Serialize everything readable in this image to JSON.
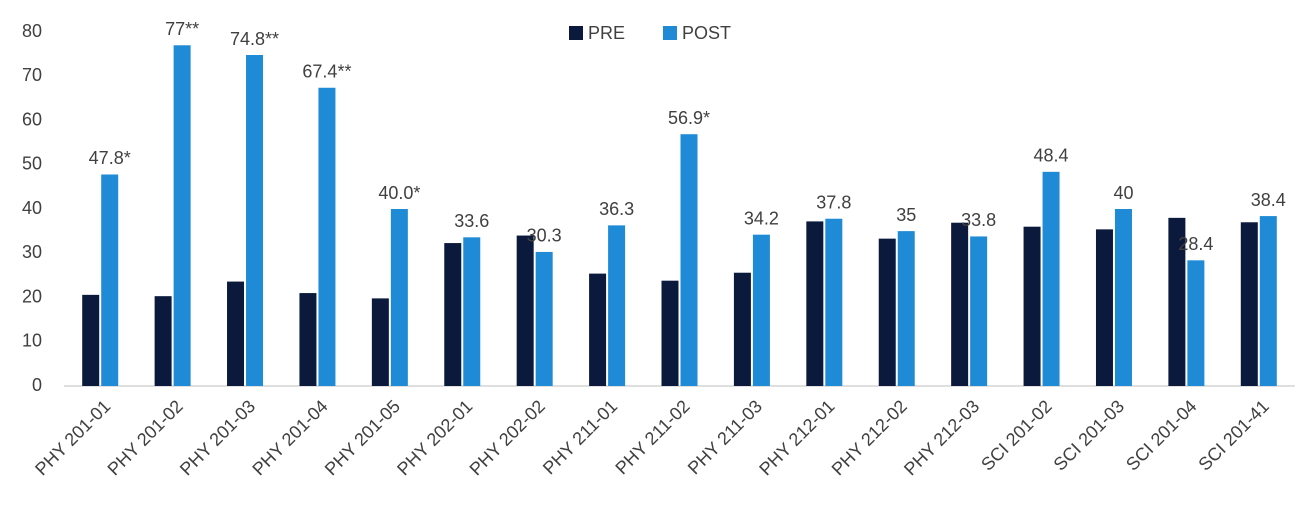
{
  "chart_data": {
    "type": "bar",
    "categories": [
      "PHY 201-01",
      "PHY 201-02",
      "PHY 201-03",
      "PHY 201-04",
      "PHY 201-05",
      "PHY 202-01",
      "PHY 202-02",
      "PHY 211-01",
      "PHY 211-02",
      "PHY 211-03",
      "PHY 212-01",
      "PHY 212-02",
      "PHY 212-03",
      "SCI 201-02",
      "SCI 201-03",
      "SCI 201-04",
      "SCI 201-41"
    ],
    "series": [
      {
        "name": "PRE",
        "color": "#0b1a3c",
        "values": [
          20.6,
          20.3,
          23.6,
          21,
          19.8,
          32.3,
          34,
          25.4,
          23.8,
          25.6,
          37.2,
          33.3,
          36.9,
          36,
          35.4,
          38,
          37
        ]
      },
      {
        "name": "POST",
        "color": "#1f8bd6",
        "values": [
          47.8,
          77,
          74.8,
          67.4,
          40.0,
          33.6,
          30.3,
          36.3,
          56.9,
          34.2,
          37.8,
          35,
          33.8,
          48.4,
          40,
          28.4,
          38.4
        ],
        "value_labels": [
          "47.8*",
          "77**",
          "74.8**",
          "67.4**",
          "40.0*",
          "33.6",
          "30.3",
          "36.3",
          "56.9*",
          "34.2",
          "37.8",
          "35",
          "33.8",
          "48.4",
          "40",
          "28.4",
          "38.4"
        ]
      }
    ],
    "ylim": [
      0,
      80
    ],
    "yticks": [
      0,
      10,
      20,
      30,
      40,
      50,
      60,
      70,
      80
    ],
    "grid": false,
    "legend": "top"
  }
}
